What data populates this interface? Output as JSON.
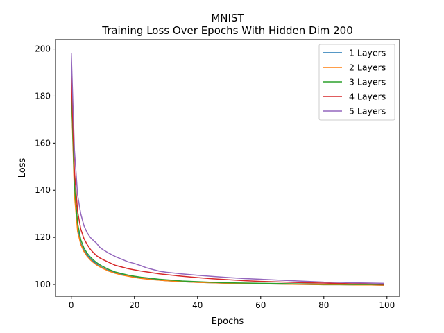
{
  "chart_data": {
    "type": "line",
    "title": "MNIST",
    "subtitle": "Training Loss Over Epochs With Hidden Dim 200",
    "xlabel": "Epochs",
    "ylabel": "Loss",
    "xlim": [
      -5,
      104
    ],
    "ylim": [
      95,
      204
    ],
    "x_ticks": [
      0,
      20,
      40,
      60,
      80,
      100
    ],
    "y_ticks": [
      100,
      120,
      140,
      160,
      180,
      200
    ],
    "grid": false,
    "legend_position": "top-right",
    "x": [
      0,
      1,
      2,
      3,
      4,
      5,
      6,
      7,
      8,
      9,
      10,
      12,
      14,
      16,
      18,
      20,
      22,
      24,
      26,
      28,
      30,
      35,
      40,
      45,
      50,
      55,
      60,
      65,
      70,
      75,
      80,
      85,
      90,
      95,
      99
    ],
    "series": [
      {
        "name": "1 Layers",
        "color": "#1f77b4",
        "values": [
          185.5,
          140.5,
          123.5,
          117.5,
          114.5,
          112.5,
          111.0,
          109.8,
          108.7,
          107.8,
          107.0,
          105.8,
          104.9,
          104.2,
          103.6,
          103.1,
          102.7,
          102.4,
          102.1,
          101.8,
          101.6,
          101.2,
          100.9,
          100.7,
          100.5,
          100.4,
          100.3,
          100.2,
          100.1,
          100.0,
          99.9,
          99.9,
          99.8,
          99.8,
          99.7
        ]
      },
      {
        "name": "2 Layers",
        "color": "#ff7f0e",
        "values": [
          183.0,
          138.0,
          122.5,
          117.0,
          114.0,
          112.0,
          110.5,
          109.3,
          108.3,
          107.5,
          106.8,
          105.6,
          104.7,
          104.0,
          103.5,
          103.0,
          102.6,
          102.3,
          102.0,
          101.8,
          101.6,
          101.2,
          100.9,
          100.7,
          100.5,
          100.4,
          100.3,
          100.2,
          100.1,
          100.0,
          99.9,
          99.9,
          99.8,
          99.8,
          99.7
        ]
      },
      {
        "name": "3 Layers",
        "color": "#2ca02c",
        "values": [
          184.0,
          142.0,
          126.0,
          119.0,
          115.5,
          113.3,
          111.7,
          110.4,
          109.3,
          108.4,
          107.6,
          106.3,
          105.3,
          104.6,
          104.0,
          103.5,
          103.1,
          102.8,
          102.5,
          102.2,
          102.0,
          101.5,
          101.2,
          100.9,
          100.7,
          100.6,
          100.5,
          100.4,
          100.3,
          100.2,
          100.1,
          100.1,
          100.0,
          100.0,
          99.9
        ]
      },
      {
        "name": "4 Layers",
        "color": "#d62728",
        "values": [
          189.0,
          148.0,
          131.0,
          123.5,
          119.5,
          117.0,
          115.0,
          113.5,
          112.2,
          111.3,
          110.6,
          109.3,
          108.1,
          107.4,
          106.7,
          106.2,
          105.7,
          105.3,
          104.9,
          104.5,
          104.2,
          103.5,
          102.9,
          102.4,
          102.0,
          101.6,
          101.3,
          101.1,
          100.9,
          100.7,
          100.6,
          100.4,
          100.3,
          100.2,
          100.0
        ]
      },
      {
        "name": "5 Layers",
        "color": "#9467bd",
        "values": [
          198.0,
          157.0,
          138.0,
          130.0,
          125.0,
          122.0,
          120.0,
          118.7,
          117.5,
          115.8,
          114.8,
          113.2,
          111.8,
          110.7,
          109.6,
          108.9,
          108.0,
          107.0,
          106.3,
          105.6,
          105.2,
          104.5,
          103.9,
          103.4,
          102.9,
          102.5,
          102.2,
          101.9,
          101.6,
          101.3,
          101.0,
          100.9,
          100.7,
          100.6,
          100.5
        ]
      }
    ]
  }
}
